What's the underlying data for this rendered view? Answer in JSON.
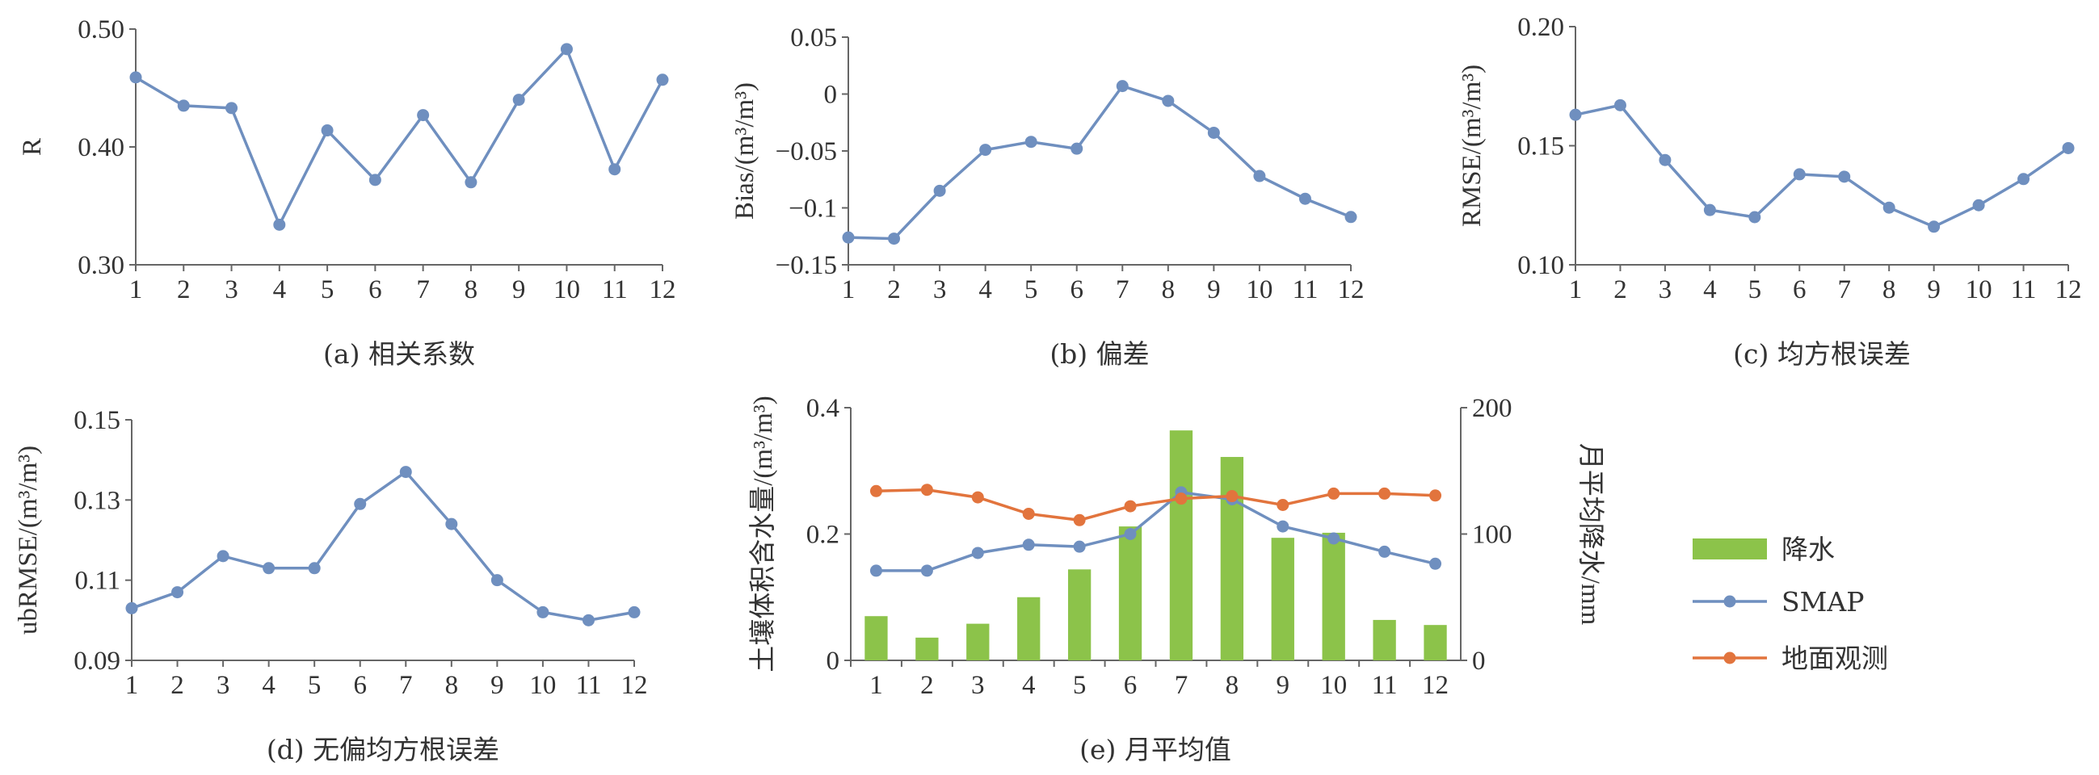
{
  "colors": {
    "line": "#6f8fbf",
    "ground": "#e2743d",
    "rain": "#8cc34a",
    "axis": "#666666",
    "text": "#333333"
  },
  "chart_data": [
    {
      "id": "a",
      "type": "line",
      "caption": "(a) 相关系数",
      "ylabel": "R",
      "x": [
        1,
        2,
        3,
        4,
        5,
        6,
        7,
        8,
        9,
        10,
        11,
        12
      ],
      "y": [
        0.459,
        0.435,
        0.433,
        0.334,
        0.414,
        0.372,
        0.427,
        0.37,
        0.44,
        0.483,
        0.381,
        0.457
      ],
      "ylim": [
        0.3,
        0.5
      ],
      "yticks": [
        "0.30",
        "0.40",
        "0.50"
      ]
    },
    {
      "id": "b",
      "type": "line",
      "caption": "(b) 偏差",
      "ylabel": "Bias/(m³/m³)",
      "x": [
        1,
        2,
        3,
        4,
        5,
        6,
        7,
        8,
        9,
        10,
        11,
        12
      ],
      "y": [
        -0.126,
        -0.127,
        -0.085,
        -0.049,
        -0.042,
        -0.048,
        0.007,
        -0.006,
        -0.034,
        -0.072,
        -0.092,
        -0.108
      ],
      "ylim": [
        -0.15,
        0.05
      ],
      "yticks": [
        "−0.15",
        "−0.1",
        "−0.05",
        "0",
        "0.05"
      ]
    },
    {
      "id": "c",
      "type": "line",
      "caption": "(c) 均方根误差",
      "ylabel": "RMSE/(m³/m³)",
      "x": [
        1,
        2,
        3,
        4,
        5,
        6,
        7,
        8,
        9,
        10,
        11,
        12
      ],
      "y": [
        0.163,
        0.167,
        0.144,
        0.123,
        0.12,
        0.138,
        0.137,
        0.124,
        0.116,
        0.125,
        0.136,
        0.149
      ],
      "ylim": [
        0.1,
        0.2
      ],
      "yticks": [
        "0.10",
        "0.15",
        "0.20"
      ]
    },
    {
      "id": "d",
      "type": "line",
      "caption": "(d) 无偏均方根误差",
      "ylabel": "ubRMSE/(m³/m³)",
      "x": [
        1,
        2,
        3,
        4,
        5,
        6,
        7,
        8,
        9,
        10,
        11,
        12
      ],
      "y": [
        0.103,
        0.107,
        0.116,
        0.113,
        0.113,
        0.129,
        0.137,
        0.124,
        0.11,
        0.102,
        0.1,
        0.102
      ],
      "ylim": [
        0.09,
        0.15
      ],
      "yticks": [
        "0.09",
        "0.11",
        "0.13",
        "0.15"
      ]
    },
    {
      "id": "e",
      "type": "bar+line",
      "caption": "(e) 月平均值",
      "ylabel": "土壤体积含水量/(m³/m³)",
      "y2label": "月平均降水/mm",
      "x": [
        1,
        2,
        3,
        4,
        5,
        6,
        7,
        8,
        9,
        10,
        11,
        12
      ],
      "ylim": [
        0,
        0.4
      ],
      "yticks": [
        "0",
        "0.2",
        "0.4"
      ],
      "y2lim": [
        0,
        200
      ],
      "y2ticks": [
        "0",
        "100",
        "200"
      ],
      "series": [
        {
          "name": "降水",
          "kind": "bar",
          "axis": "right",
          "values": [
            35,
            18,
            29,
            50,
            72,
            106,
            182,
            161,
            97,
            101,
            32,
            28
          ]
        },
        {
          "name": "SMAP",
          "kind": "line",
          "axis": "left",
          "values": [
            0.142,
            0.142,
            0.17,
            0.183,
            0.18,
            0.2,
            0.266,
            0.255,
            0.212,
            0.193,
            0.172,
            0.153
          ]
        },
        {
          "name": "地面观测",
          "kind": "line",
          "axis": "left",
          "values": [
            0.268,
            0.27,
            0.258,
            0.232,
            0.222,
            0.244,
            0.256,
            0.26,
            0.246,
            0.264,
            0.264,
            0.261
          ]
        }
      ],
      "legend": "right"
    }
  ]
}
